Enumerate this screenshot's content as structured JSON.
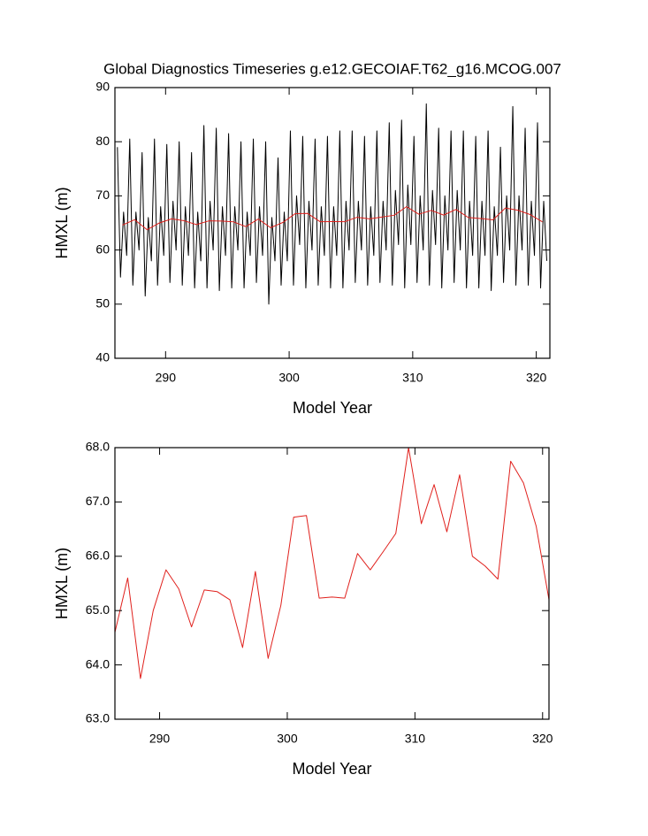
{
  "chart_data": [
    {
      "type": "line",
      "title": "Global Diagnostics Timeseries g.e12.GECOIAF.T62_g16.MCOG.007",
      "xlabel": "Model Year",
      "ylabel": "HMXL (m)",
      "xlim": [
        285.9,
        321.1
      ],
      "xticks": [
        290,
        300,
        310,
        320
      ],
      "ylim": [
        40,
        90
      ],
      "yticks": [
        40,
        50,
        60,
        70,
        80,
        90
      ],
      "series": [
        {
          "color": "#000000",
          "x": [
            286.1,
            286.35,
            286.6,
            286.85,
            287.1,
            287.35,
            287.6,
            287.85,
            288.1,
            288.35,
            288.6,
            288.85,
            289.1,
            289.35,
            289.6,
            289.85,
            290.1,
            290.35,
            290.6,
            290.85,
            291.1,
            291.35,
            291.6,
            291.85,
            292.1,
            292.35,
            292.6,
            292.85,
            293.1,
            293.35,
            293.6,
            293.85,
            294.1,
            294.35,
            294.6,
            294.85,
            295.1,
            295.35,
            295.6,
            295.85,
            296.1,
            296.35,
            296.6,
            296.85,
            297.1,
            297.35,
            297.6,
            297.85,
            298.1,
            298.35,
            298.6,
            298.85,
            299.1,
            299.35,
            299.6,
            299.85,
            300.1,
            300.35,
            300.6,
            300.85,
            301.1,
            301.35,
            301.6,
            301.85,
            302.1,
            302.35,
            302.6,
            302.85,
            303.1,
            303.35,
            303.6,
            303.85,
            304.1,
            304.35,
            304.6,
            304.85,
            305.1,
            305.35,
            305.6,
            305.85,
            306.1,
            306.35,
            306.6,
            306.85,
            307.1,
            307.35,
            307.6,
            307.85,
            308.1,
            308.35,
            308.6,
            308.85,
            309.1,
            309.35,
            309.6,
            309.85,
            310.1,
            310.35,
            310.6,
            310.85,
            311.1,
            311.35,
            311.6,
            311.85,
            312.1,
            312.35,
            312.6,
            312.85,
            313.1,
            313.35,
            313.6,
            313.85,
            314.1,
            314.35,
            314.6,
            314.85,
            315.1,
            315.35,
            315.6,
            315.85,
            316.1,
            316.35,
            316.6,
            316.85,
            317.1,
            317.35,
            317.6,
            317.85,
            318.1,
            318.35,
            318.6,
            318.85,
            319.1,
            319.35,
            319.6,
            319.85,
            320.1,
            320.35,
            320.6,
            320.85
          ],
          "values": [
            79,
            55,
            67,
            59,
            80.5,
            53.5,
            67,
            60,
            78,
            51.5,
            66,
            58,
            80.5,
            53.5,
            68,
            59,
            79.5,
            54,
            69,
            60,
            80,
            53.5,
            68,
            59,
            78,
            53,
            67,
            58,
            83,
            53,
            69,
            60,
            82.5,
            52.5,
            68,
            59,
            81.5,
            53,
            68,
            60,
            80,
            53,
            67,
            59,
            80.5,
            54,
            68,
            59,
            80,
            50,
            66,
            58,
            77,
            53.5,
            67,
            58,
            82,
            53.5,
            70,
            61,
            81,
            53,
            69,
            60,
            80.5,
            53.5,
            68,
            59,
            81,
            53,
            68,
            59,
            82,
            53,
            69,
            60,
            82,
            54,
            69,
            60,
            81,
            53.5,
            68,
            59,
            82,
            54,
            69,
            60,
            83.5,
            53.5,
            71,
            61,
            84,
            53,
            72,
            61,
            81,
            54,
            70,
            60,
            87,
            53.5,
            71,
            61,
            82.5,
            53,
            70,
            60,
            82,
            54,
            71,
            60,
            82,
            53,
            69,
            59,
            81,
            53,
            69,
            59,
            82,
            52.5,
            68,
            59,
            79,
            54,
            70,
            60,
            86.5,
            53.5,
            70,
            60,
            82.5,
            53.5,
            69,
            59,
            83.5,
            53,
            69,
            58
          ]
        },
        {
          "color": "#e0201c",
          "x": [
            286.5,
            287.5,
            288.5,
            289.5,
            290.5,
            291.5,
            292.5,
            293.5,
            294.5,
            295.5,
            296.5,
            297.5,
            298.5,
            299.5,
            300.5,
            301.5,
            302.5,
            303.5,
            304.5,
            305.5,
            306.5,
            307.5,
            308.5,
            309.5,
            310.5,
            311.5,
            312.5,
            313.5,
            314.5,
            315.5,
            316.5,
            317.5,
            318.5,
            319.5,
            320.5
          ],
          "values": [
            64.6,
            65.6,
            63.75,
            65.0,
            65.75,
            65.4,
            64.7,
            65.38,
            65.35,
            65.2,
            64.32,
            65.72,
            64.12,
            65.1,
            66.72,
            66.75,
            65.23,
            65.25,
            65.23,
            66.05,
            65.75,
            66.08,
            66.42,
            68.0,
            66.6,
            67.32,
            66.45,
            67.5,
            66.0,
            65.82,
            65.58,
            67.75,
            67.35,
            66.55,
            65.2
          ]
        }
      ]
    },
    {
      "type": "line",
      "xlabel": "Model Year",
      "ylabel": "HMXL (m)",
      "xlim": [
        286.5,
        320.5
      ],
      "xticks": [
        290,
        300,
        310,
        320
      ],
      "ylim": [
        63,
        68
      ],
      "yticks": [
        {
          "value": 63,
          "label": "63.0"
        },
        {
          "value": 64,
          "label": "64.0"
        },
        {
          "value": 65,
          "label": "65.0"
        },
        {
          "value": 66,
          "label": "66.0"
        },
        {
          "value": 67,
          "label": "67.0"
        },
        {
          "value": 68,
          "label": "68.0"
        }
      ],
      "series": [
        {
          "color": "#e0201c",
          "x": [
            286.5,
            287.5,
            288.5,
            289.5,
            290.5,
            291.5,
            292.5,
            293.5,
            294.5,
            295.5,
            296.5,
            297.5,
            298.5,
            299.5,
            300.5,
            301.5,
            302.5,
            303.5,
            304.5,
            305.5,
            306.5,
            307.5,
            308.5,
            309.5,
            310.5,
            311.5,
            312.5,
            313.5,
            314.5,
            315.5,
            316.5,
            317.5,
            318.5,
            319.5,
            320.5
          ],
          "values": [
            64.6,
            65.6,
            63.75,
            65.0,
            65.75,
            65.4,
            64.7,
            65.38,
            65.35,
            65.2,
            64.32,
            65.72,
            64.12,
            65.1,
            66.72,
            66.75,
            65.23,
            65.25,
            65.23,
            66.05,
            65.75,
            66.08,
            66.42,
            68.0,
            66.6,
            67.32,
            66.45,
            67.5,
            66.0,
            65.82,
            65.58,
            67.75,
            67.35,
            66.55,
            65.2
          ]
        }
      ]
    }
  ]
}
